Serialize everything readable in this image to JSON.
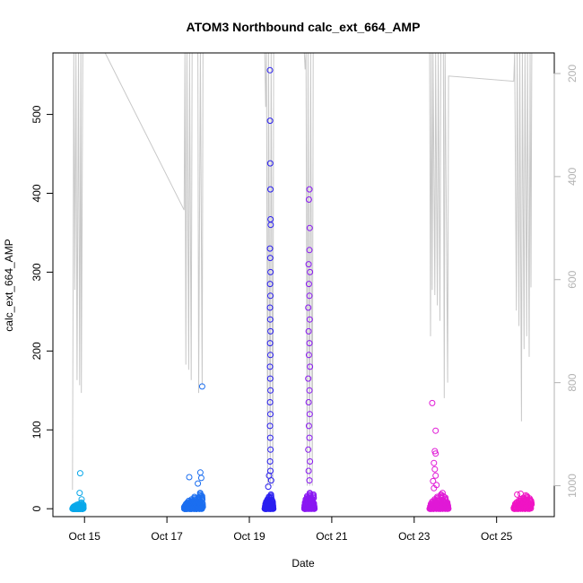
{
  "chart_data": {
    "type": "scatter",
    "title": "ATOM3 Northbound calc_ext_664_AMP",
    "xlabel": "Date",
    "ylabel": "calc_ext_664_AMP",
    "x_ticks": [
      "Oct 15",
      "Oct 17",
      "Oct 19",
      "Oct 21",
      "Oct 23",
      "Oct 25"
    ],
    "y_ticks": [
      0,
      100,
      200,
      300,
      400,
      500
    ],
    "right_ticks": [
      200,
      400,
      600,
      800,
      1000
    ],
    "xlim": [
      "2024-10-14T05:36",
      "2024-10-26T09:36"
    ],
    "ylim": [
      -10,
      578
    ],
    "right_ylim": [
      1060,
      160
    ],
    "right_axis_reversed": true,
    "colors": {
      "axis": "#000000",
      "right_axis": "#b3b3b3",
      "depth_line": "#c8c8c8"
    },
    "depth_series": {
      "color": "#c8c8c8",
      "points": [
        [
          "2024-10-14T17:00",
          1008
        ],
        [
          "2024-10-14T17:45",
          160
        ],
        [
          "2024-10-14T18:20",
          620
        ],
        [
          "2024-10-14T19:00",
          160
        ],
        [
          "2024-10-14T19:40",
          795
        ],
        [
          "2024-10-14T20:30",
          160
        ],
        [
          "2024-10-14T21:10",
          805
        ],
        [
          "2024-10-14T21:50",
          160
        ],
        [
          "2024-10-14T22:10",
          820
        ],
        [
          "2024-10-14T23:00",
          160
        ],
        [
          "2024-10-15T12:00",
          160
        ],
        [
          "2024-10-17T10:00",
          465
        ],
        [
          "2024-10-17T10:30",
          160
        ],
        [
          "2024-10-17T11:00",
          765
        ],
        [
          "2024-10-17T11:40",
          160
        ],
        [
          "2024-10-17T12:40",
          775
        ],
        [
          "2024-10-17T13:10",
          160
        ],
        [
          "2024-10-17T14:10",
          795
        ],
        [
          "2024-10-17T14:40",
          160
        ],
        [
          "2024-10-17T18:00",
          160
        ],
        [
          "2024-10-17T18:30",
          820
        ],
        [
          "2024-10-17T19:30",
          160
        ],
        [
          "2024-10-17T20:30",
          805
        ],
        [
          "2024-10-17T21:00",
          160
        ],
        [
          "2024-10-19T09:00",
          160
        ],
        [
          "2024-10-19T09:30",
          265
        ],
        [
          "2024-10-19T10:00",
          160
        ],
        [
          "2024-10-19T10:40",
          1000
        ],
        [
          "2024-10-19T11:10",
          160
        ],
        [
          "2024-10-19T12:10",
          1000
        ],
        [
          "2024-10-19T12:40",
          160
        ],
        [
          "2024-10-19T13:40",
          1000
        ],
        [
          "2024-10-19T14:10",
          160
        ],
        [
          "2024-10-20T08:00",
          160
        ],
        [
          "2024-10-20T08:30",
          192
        ],
        [
          "2024-10-20T09:00",
          160
        ],
        [
          "2024-10-20T09:40",
          1000
        ],
        [
          "2024-10-20T10:10",
          160
        ],
        [
          "2024-10-20T11:10",
          1000
        ],
        [
          "2024-10-20T11:40",
          160
        ],
        [
          "2024-10-20T12:40",
          1000
        ],
        [
          "2024-10-20T13:10",
          160
        ],
        [
          "2024-10-20T14:00",
          160
        ],
        [
          "2024-10-23T09:00",
          160
        ],
        [
          "2024-10-23T09:30",
          710
        ],
        [
          "2024-10-23T10:00",
          160
        ],
        [
          "2024-10-23T10:30",
          620
        ],
        [
          "2024-10-23T11:00",
          160
        ],
        [
          "2024-10-23T12:00",
          630
        ],
        [
          "2024-10-23T12:30",
          160
        ],
        [
          "2024-10-23T13:30",
          650
        ],
        [
          "2024-10-23T14:00",
          160
        ],
        [
          "2024-10-23T15:00",
          680
        ],
        [
          "2024-10-23T15:30",
          160
        ],
        [
          "2024-10-23T17:00",
          160
        ],
        [
          "2024-10-23T17:30",
          830
        ],
        [
          "2024-10-23T18:00",
          160
        ],
        [
          "2024-10-23T19:30",
          800
        ],
        [
          "2024-10-23T20:00",
          205
        ],
        [
          "2024-10-25T10:00",
          215
        ],
        [
          "2024-10-25T10:30",
          160
        ],
        [
          "2024-10-25T11:30",
          660
        ],
        [
          "2024-10-25T12:00",
          160
        ],
        [
          "2024-10-25T13:00",
          690
        ],
        [
          "2024-10-25T13:30",
          160
        ],
        [
          "2024-10-25T14:30",
          875
        ],
        [
          "2024-10-25T15:00",
          160
        ],
        [
          "2024-10-25T16:00",
          735
        ],
        [
          "2024-10-25T16:30",
          160
        ],
        [
          "2024-10-25T17:30",
          710
        ],
        [
          "2024-10-25T18:00",
          160
        ],
        [
          "2024-10-25T19:00",
          750
        ],
        [
          "2024-10-25T19:30",
          160
        ],
        [
          "2024-10-25T20:00",
          615
        ],
        [
          "2024-10-25T20:30",
          160
        ]
      ]
    },
    "scatter_series": {
      "groups": [
        {
          "color": "#0aa8ea",
          "start": "2024-10-14T17:00",
          "end": "2024-10-14T23:30",
          "base_values": [
            0,
            1,
            2,
            0,
            3,
            1,
            0,
            2,
            4,
            1,
            0,
            2,
            5,
            3,
            1,
            0,
            2,
            1,
            6,
            3,
            0,
            1,
            2,
            4,
            8,
            2,
            1,
            0,
            3,
            5
          ],
          "outliers": [
            [
              "2024-10-14T21:30",
              45
            ],
            [
              "2024-10-14T21:10",
              20
            ],
            [
              "2024-10-14T22:20",
              12
            ]
          ]
        },
        {
          "color": "#1b6ef0",
          "start": "2024-10-17T10:00",
          "end": "2024-10-17T21:00",
          "base_values": [
            2,
            0,
            4,
            1,
            6,
            3,
            0,
            8,
            5,
            2,
            10,
            4,
            1,
            7,
            3,
            0,
            12,
            5,
            2,
            9,
            6,
            1,
            15,
            4,
            3,
            11,
            2,
            0,
            8,
            5,
            14,
            3,
            6,
            1,
            20,
            9,
            4,
            2,
            16,
            7
          ],
          "outliers": [
            [
              "2024-10-17T13:00",
              40
            ],
            [
              "2024-10-17T19:30",
              46
            ],
            [
              "2024-10-17T20:00",
              39
            ],
            [
              "2024-10-17T20:30",
              155
            ],
            [
              "2024-10-17T18:00",
              32
            ]
          ]
        },
        {
          "color": "#2a1ff0",
          "start": "2024-10-19T09:00",
          "end": "2024-10-19T14:00",
          "base_values": [
            0,
            3,
            6,
            2,
            9,
            4,
            1,
            7,
            12,
            5,
            2,
            8,
            15,
            3,
            6,
            10,
            1,
            4,
            18,
            7,
            2,
            11,
            5,
            9,
            3
          ],
          "outliers": [
            [
              "2024-10-19T12:00",
              556
            ],
            [
              "2024-10-19T12:05",
              492
            ],
            [
              "2024-10-19T12:10",
              438
            ],
            [
              "2024-10-19T12:15",
              405
            ],
            [
              "2024-10-19T12:20",
              367
            ],
            [
              "2024-10-19T12:25",
              360
            ],
            [
              "2024-10-19T12:00",
              330
            ],
            [
              "2024-10-19T12:10",
              318
            ],
            [
              "2024-10-19T12:20",
              300
            ],
            [
              "2024-10-19T12:05",
              285
            ],
            [
              "2024-10-19T12:15",
              270
            ],
            [
              "2024-10-19T12:00",
              255
            ],
            [
              "2024-10-19T12:10",
              240
            ],
            [
              "2024-10-19T12:20",
              225
            ],
            [
              "2024-10-19T12:05",
              210
            ],
            [
              "2024-10-19T12:15",
              195
            ],
            [
              "2024-10-19T12:00",
              180
            ],
            [
              "2024-10-19T12:10",
              165
            ],
            [
              "2024-10-19T12:20",
              150
            ],
            [
              "2024-10-19T12:05",
              135
            ],
            [
              "2024-10-19T12:15",
              120
            ],
            [
              "2024-10-19T12:00",
              105
            ],
            [
              "2024-10-19T12:10",
              90
            ],
            [
              "2024-10-19T12:20",
              75
            ],
            [
              "2024-10-19T12:05",
              60
            ],
            [
              "2024-10-19T12:15",
              48
            ],
            [
              "2024-10-19T11:30",
              42
            ],
            [
              "2024-10-19T12:40",
              36
            ],
            [
              "2024-10-19T11:00",
              28
            ]
          ]
        },
        {
          "color": "#8a18f2",
          "start": "2024-10-20T08:00",
          "end": "2024-10-20T14:00",
          "base_values": [
            1,
            4,
            8,
            2,
            12,
            6,
            3,
            10,
            16,
            5,
            2,
            9,
            14,
            4,
            7,
            20,
            3,
            6,
            11,
            8,
            2,
            13,
            5,
            9,
            4,
            18,
            7,
            3
          ],
          "outliers": [
            [
              "2024-10-20T11:00",
              405
            ],
            [
              "2024-10-20T10:40",
              392
            ],
            [
              "2024-10-20T11:10",
              356
            ],
            [
              "2024-10-20T11:00",
              328
            ],
            [
              "2024-10-20T10:30",
              310
            ],
            [
              "2024-10-20T11:20",
              300
            ],
            [
              "2024-10-20T10:40",
              285
            ],
            [
              "2024-10-20T11:00",
              270
            ],
            [
              "2024-10-20T10:20",
              255
            ],
            [
              "2024-10-20T11:10",
              240
            ],
            [
              "2024-10-20T10:30",
              225
            ],
            [
              "2024-10-20T11:00",
              210
            ],
            [
              "2024-10-20T10:40",
              195
            ],
            [
              "2024-10-20T11:20",
              180
            ],
            [
              "2024-10-20T10:20",
              165
            ],
            [
              "2024-10-20T11:00",
              150
            ],
            [
              "2024-10-20T10:30",
              135
            ],
            [
              "2024-10-20T11:10",
              120
            ],
            [
              "2024-10-20T10:40",
              105
            ],
            [
              "2024-10-20T11:00",
              90
            ],
            [
              "2024-10-20T10:20",
              75
            ],
            [
              "2024-10-20T11:20",
              60
            ],
            [
              "2024-10-20T10:30",
              48
            ],
            [
              "2024-10-20T11:00",
              36
            ]
          ]
        },
        {
          "color": "#e019d6",
          "start": "2024-10-23T09:00",
          "end": "2024-10-23T20:00",
          "base_values": [
            0,
            3,
            6,
            2,
            9,
            4,
            1,
            7,
            12,
            5,
            2,
            8,
            15,
            3,
            6,
            10,
            1,
            4,
            18,
            7,
            2,
            11,
            5,
            9,
            3,
            14,
            6,
            2,
            8,
            4
          ],
          "outliers": [
            [
              "2024-10-23T10:30",
              134
            ],
            [
              "2024-10-23T12:30",
              99
            ],
            [
              "2024-10-23T12:00",
              73
            ],
            [
              "2024-10-23T12:30",
              70
            ],
            [
              "2024-10-23T11:30",
              58
            ],
            [
              "2024-10-23T12:00",
              50
            ],
            [
              "2024-10-23T12:30",
              42
            ],
            [
              "2024-10-23T11:00",
              35
            ],
            [
              "2024-10-23T13:00",
              30
            ],
            [
              "2024-10-23T11:30",
              26
            ],
            [
              "2024-10-23T16:30",
              20
            ],
            [
              "2024-10-23T17:00",
              16
            ]
          ]
        },
        {
          "color": "#f014c4",
          "start": "2024-10-25T10:00",
          "end": "2024-10-25T20:30",
          "base_values": [
            1,
            3,
            6,
            2,
            8,
            4,
            0,
            10,
            5,
            2,
            12,
            7,
            3,
            9,
            14,
            4,
            1,
            11,
            6,
            16,
            3,
            8,
            2,
            13,
            5,
            10
          ],
          "outliers": [
            [
              "2024-10-25T12:00",
              18
            ],
            [
              "2024-10-25T14:00",
              19
            ],
            [
              "2024-10-25T17:00",
              17
            ]
          ]
        }
      ]
    }
  }
}
